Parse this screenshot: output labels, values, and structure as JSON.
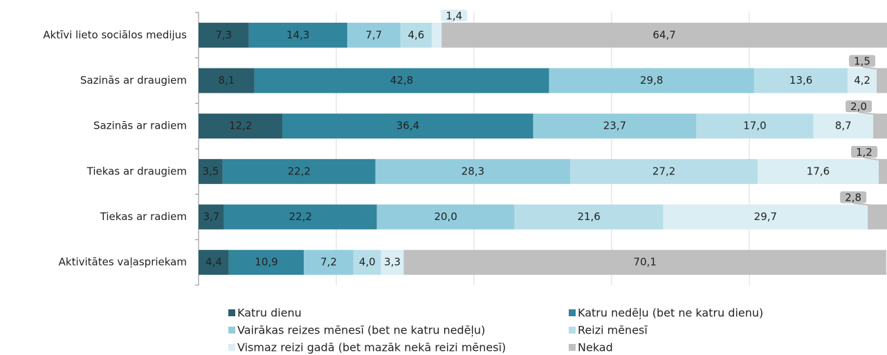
{
  "chart_data": {
    "type": "stacked-bar-horizontal",
    "categories": [
      "Aktīvi lieto sociālos medijus",
      "Sazinās ar draugiem",
      "Sazinās ar radiem",
      "Tiekas ar draugiem",
      "Tiekas ar radiem",
      "Aktivitātes vaļaspriekam"
    ],
    "series": [
      {
        "name": "Katru dienu",
        "color": "#2a5e6c",
        "values": [
          7.3,
          8.1,
          12.2,
          3.5,
          3.7,
          4.4
        ],
        "value_labels": [
          "7,3",
          "8,1",
          "12,2",
          "3,5",
          "3,7",
          "4,4"
        ]
      },
      {
        "name": "Katru nedēļu (bet ne katru dienu)",
        "color": "#31859c",
        "values": [
          14.3,
          42.8,
          36.4,
          22.2,
          22.2,
          10.9
        ],
        "value_labels": [
          "14,3",
          "42,8",
          "36,4",
          "22,2",
          "22,2",
          "10,9"
        ]
      },
      {
        "name": "Vairākas reizes mēnesī (bet ne katru nedēļu)",
        "color": "#93cddd",
        "values": [
          7.7,
          29.8,
          23.7,
          28.3,
          20.0,
          7.2
        ],
        "value_labels": [
          "7,7",
          "29,8",
          "23,7",
          "28,3",
          "20,0",
          "7,2"
        ]
      },
      {
        "name": "Reizi mēnesī",
        "color": "#b7dee8",
        "values": [
          4.6,
          13.6,
          17.0,
          27.2,
          21.6,
          4.0
        ],
        "value_labels": [
          "4,6",
          "13,6",
          "17,0",
          "27,2",
          "21,6",
          "4,0"
        ]
      },
      {
        "name": "Vismaz reizi gadā (bet mazāk nekā reizi mēnesī)",
        "color": "#daeef3",
        "values": [
          1.4,
          4.2,
          8.7,
          17.6,
          29.7,
          3.3
        ],
        "value_labels": [
          "1,4",
          "4,2",
          "8,7",
          "17,6",
          "29,7",
          "3,3"
        ]
      },
      {
        "name": "Nekad",
        "color": "#bfbfbf",
        "values": [
          64.7,
          1.5,
          2.0,
          1.2,
          2.8,
          70.1
        ],
        "value_labels": [
          "64,7",
          "1,5",
          "2,0",
          "1,2",
          "2,8",
          "70,1"
        ]
      }
    ],
    "xlim": [
      0,
      100
    ],
    "xticks": [
      0,
      20,
      40,
      60,
      80,
      100
    ],
    "grid": true
  }
}
